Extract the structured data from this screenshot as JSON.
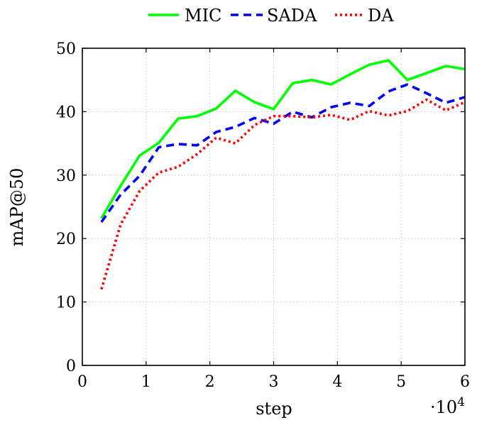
{
  "chart_data": {
    "type": "line",
    "title": "",
    "xlabel": "step",
    "ylabel": "mAP@50",
    "x_multiplier_label": "·10",
    "x_multiplier_exponent": "4",
    "xlim": [
      0,
      6
    ],
    "ylim": [
      0,
      50
    ],
    "xticks": [
      0,
      1,
      2,
      3,
      4,
      5,
      6
    ],
    "yticks": [
      0,
      10,
      20,
      30,
      40,
      50
    ],
    "grid": true,
    "legend": "top-center",
    "series": [
      {
        "name": "MIC",
        "color": "#00ff00",
        "style": "solid",
        "x": [
          0.3,
          0.6,
          0.9,
          1.2,
          1.5,
          1.8,
          2.1,
          2.4,
          2.7,
          3.0,
          3.3,
          3.6,
          3.9,
          4.2,
          4.5,
          4.8,
          5.1,
          5.4,
          5.7,
          6.0
        ],
        "values": [
          23.2,
          28.3,
          33.1,
          35.1,
          38.9,
          39.3,
          40.5,
          43.3,
          41.5,
          40.4,
          44.5,
          45.0,
          44.3,
          45.9,
          47.4,
          48.1,
          45.0,
          46.1,
          47.2,
          46.7
        ]
      },
      {
        "name": "SADA",
        "color": "#0000ff",
        "style": "dashed",
        "x": [
          0.3,
          0.6,
          0.9,
          1.2,
          1.5,
          1.8,
          2.1,
          2.4,
          2.7,
          3.0,
          3.3,
          3.6,
          3.9,
          4.2,
          4.5,
          4.8,
          5.1,
          5.4,
          5.7,
          6.0
        ],
        "values": [
          22.6,
          26.9,
          29.9,
          34.4,
          34.9,
          34.7,
          36.8,
          37.6,
          39.0,
          38.1,
          40.0,
          39.1,
          40.7,
          41.4,
          40.9,
          43.2,
          44.3,
          42.9,
          41.4,
          42.3
        ]
      },
      {
        "name": "DA",
        "color": "#ff0000",
        "style": "dotted",
        "x": [
          0.3,
          0.6,
          0.9,
          1.2,
          1.5,
          1.8,
          2.1,
          2.4,
          2.7,
          3.0,
          3.3,
          3.6,
          3.9,
          4.2,
          4.5,
          4.8,
          5.1,
          5.4,
          5.7,
          6.0
        ],
        "values": [
          12.0,
          22.2,
          27.5,
          30.4,
          31.3,
          33.3,
          35.9,
          35.0,
          37.9,
          39.3,
          39.3,
          39.1,
          39.5,
          38.7,
          40.1,
          39.4,
          40.1,
          41.9,
          40.2,
          41.5
        ]
      }
    ]
  }
}
